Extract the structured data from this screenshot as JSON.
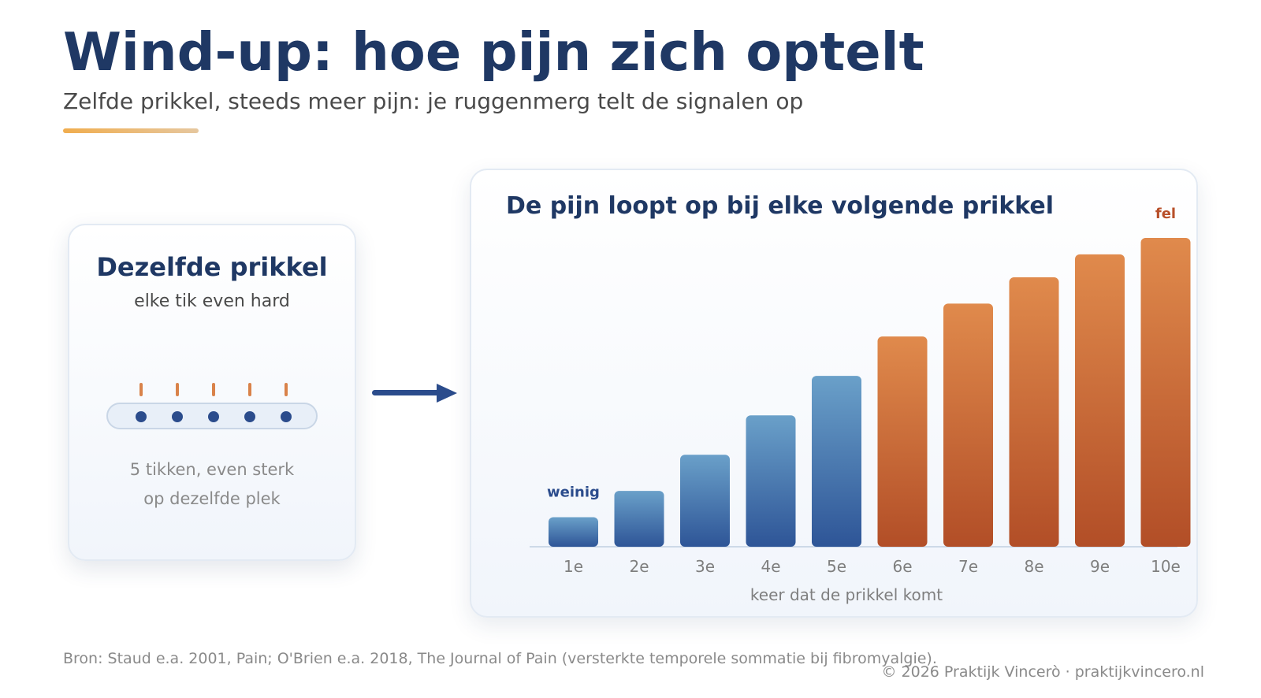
{
  "header": {
    "title": "Wind-up: hoe pijn zich optelt",
    "subtitle": "Zelfde prikkel, steeds meer pijn: je ruggenmerg telt de signalen op"
  },
  "left_panel": {
    "title": "Dezelfde prikkel",
    "subtitle": "elke tik even hard",
    "tap_count": 5,
    "caption_lines": [
      "5 tikken, even sterk",
      "op dezelfde plek"
    ]
  },
  "chart_data": {
    "type": "bar",
    "title": "De pijn loopt op bij elke volgende prikkel",
    "xlabel": "keer dat de prikkel komt",
    "ylabel": "",
    "categories": [
      "1e",
      "2e",
      "3e",
      "4e",
      "5e",
      "6e",
      "7e",
      "8e",
      "9e",
      "10e"
    ],
    "values": [
      0.09,
      0.17,
      0.28,
      0.4,
      0.52,
      0.64,
      0.74,
      0.82,
      0.89,
      0.94
    ],
    "ylim": [
      0,
      1
    ],
    "grid": false,
    "annotations": {
      "low": "weinig",
      "high": "fel"
    },
    "colors": {
      "low_series": "#3a66a8",
      "high_series": "#d9733a",
      "low_label": "#2b4c8c",
      "high_label": "#b8502a"
    },
    "color_switch_after_index": 4
  },
  "footer": {
    "source": "Bron: Staud e.a. 2001, Pain; O'Brien e.a. 2018, The Journal of Pain (versterkte temporele sommatie bij fibromyalgie).",
    "copyright": "© 2026 Praktijk Vincerò · praktijkvincero.nl"
  },
  "colors": {
    "title": "#1f3864",
    "accent": "#f0ad4e",
    "tap_mark": "#d9824a",
    "tap_dot": "#2b4c8c"
  }
}
